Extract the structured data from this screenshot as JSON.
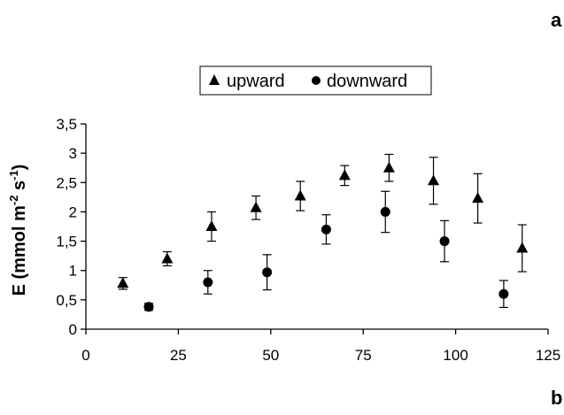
{
  "chart_data": {
    "type": "scatter",
    "panel_labels": [
      "a",
      "b"
    ],
    "ylabel": "E (mmol m⁻² s⁻¹)",
    "xlabel": "",
    "title": "",
    "legend_position": "top-center",
    "grid": false,
    "xlim": [
      0,
      125
    ],
    "ylim": [
      0,
      3.5
    ],
    "x_ticks": [
      "0",
      "25",
      "50",
      "75",
      "100",
      "125"
    ],
    "x_tick_values": [
      0,
      25,
      50,
      75,
      100,
      125
    ],
    "y_ticks": [
      "0",
      "0,5",
      "1",
      "1,5",
      "2",
      "2,5",
      "3",
      "3,5"
    ],
    "y_tick_values": [
      0,
      0.5,
      1,
      1.5,
      2,
      2.5,
      3,
      3.5
    ],
    "series": [
      {
        "name": "upward",
        "marker": "triangle",
        "x": [
          10,
          22,
          34,
          46,
          58,
          70,
          82,
          94,
          106,
          118
        ],
        "y": [
          0.78,
          1.2,
          1.75,
          2.07,
          2.27,
          2.62,
          2.75,
          2.53,
          2.23,
          1.38
        ],
        "err": [
          0.1,
          0.12,
          0.25,
          0.2,
          0.25,
          0.17,
          0.23,
          0.4,
          0.42,
          0.4
        ]
      },
      {
        "name": "downward",
        "marker": "circle",
        "x": [
          17,
          33,
          49,
          65,
          81,
          97,
          113
        ],
        "y": [
          0.38,
          0.8,
          0.97,
          1.7,
          2.0,
          1.5,
          0.6
        ],
        "err": [
          0.06,
          0.2,
          0.3,
          0.25,
          0.35,
          0.35,
          0.23
        ]
      }
    ]
  }
}
